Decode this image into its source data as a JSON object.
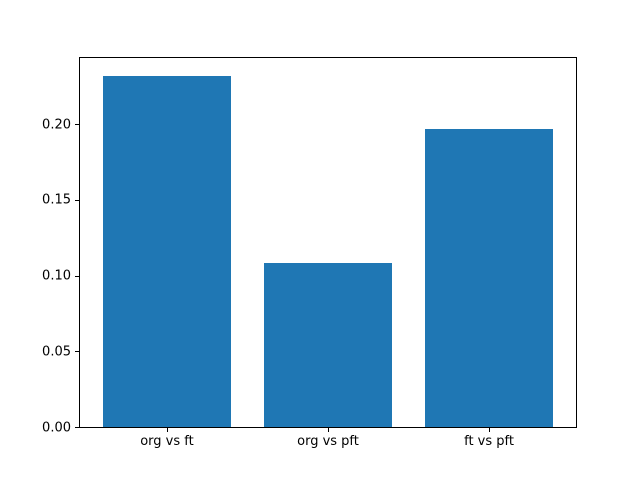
{
  "chart_data": {
    "type": "bar",
    "title": "",
    "xlabel": "",
    "ylabel": "",
    "categories": [
      "org vs ft",
      "org vs pft",
      "ft vs pft"
    ],
    "values": [
      0.232,
      0.108,
      0.197
    ],
    "ylim": [
      0,
      0.244
    ],
    "yticks": [
      0.0,
      0.05,
      0.1,
      0.15,
      0.2
    ],
    "ytick_labels": [
      "0.00",
      "0.05",
      "0.10",
      "0.15",
      "0.20"
    ],
    "bar_color": "#1f77b4",
    "axis_color": "#000000",
    "background_color": "#ffffff",
    "grid": false,
    "legend": "none",
    "bar_width_fraction": 0.8
  }
}
